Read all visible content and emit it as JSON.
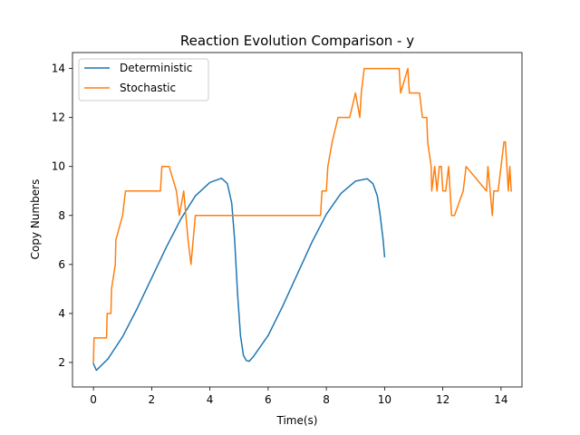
{
  "chart_data": {
    "type": "line",
    "title": "Reaction Evolution Comparison - y",
    "xlabel": "Time(s)",
    "ylabel": "Copy Numbers",
    "xlim": [
      -0.72,
      14.72
    ],
    "ylim": [
      1.0,
      14.65
    ],
    "xticks": [
      0,
      2,
      4,
      6,
      8,
      10,
      12,
      14
    ],
    "yticks": [
      2,
      4,
      6,
      8,
      10,
      12,
      14
    ],
    "legend_position": "upper-left",
    "grid": false,
    "series": [
      {
        "name": "Deterministic",
        "color": "#1f77b4",
        "x": [
          0,
          0.1,
          0.5,
          1.0,
          1.5,
          2.0,
          2.5,
          3.0,
          3.5,
          4.0,
          4.4,
          4.6,
          4.75,
          4.85,
          4.95,
          5.05,
          5.15,
          5.25,
          5.35,
          5.5,
          6.0,
          6.5,
          7.0,
          7.5,
          8.0,
          8.5,
          9.0,
          9.4,
          9.6,
          9.75,
          9.85,
          9.95,
          10.0
        ],
        "y": [
          1.95,
          1.68,
          2.15,
          3.05,
          4.2,
          5.45,
          6.7,
          7.85,
          8.8,
          9.35,
          9.52,
          9.3,
          8.5,
          7.0,
          4.8,
          3.1,
          2.3,
          2.08,
          2.05,
          2.25,
          3.1,
          4.3,
          5.6,
          6.9,
          8.05,
          8.9,
          9.4,
          9.5,
          9.3,
          8.8,
          8.0,
          7.0,
          6.32
        ]
      },
      {
        "name": "Stochastic",
        "color": "#ff7f0e",
        "x": [
          0,
          0.02,
          0.45,
          0.47,
          0.6,
          0.62,
          0.75,
          0.77,
          1.0,
          1.1,
          2.3,
          2.35,
          2.6,
          2.85,
          2.95,
          3.1,
          3.25,
          3.35,
          3.5,
          7.8,
          7.85,
          8.0,
          8.05,
          8.2,
          8.4,
          8.8,
          9.0,
          9.15,
          9.2,
          9.3,
          9.35,
          9.5,
          10.5,
          10.55,
          10.8,
          10.85,
          11.2,
          11.3,
          11.45,
          11.48,
          11.6,
          11.62,
          11.72,
          11.8,
          11.88,
          11.95,
          12.0,
          12.05,
          12.1,
          12.2,
          12.25,
          12.3,
          12.4,
          12.7,
          12.8,
          13.5,
          13.55,
          13.7,
          13.75,
          13.9,
          14.1,
          14.15,
          14.25,
          14.3,
          14.35
        ],
        "y": [
          2,
          3,
          3,
          4,
          4,
          5,
          6,
          7,
          8,
          9,
          9,
          10,
          10,
          9,
          8,
          9,
          7,
          6,
          8,
          8,
          9,
          9,
          10,
          11,
          12,
          12,
          13,
          12,
          13,
          14,
          14,
          14,
          14,
          13,
          14,
          13,
          13,
          12,
          12,
          11,
          10,
          9,
          10,
          9,
          10,
          10,
          9,
          9,
          9,
          10,
          9,
          8,
          8,
          9,
          10,
          9,
          10,
          8,
          9,
          9,
          11,
          11,
          9,
          10,
          9
        ]
      }
    ]
  }
}
